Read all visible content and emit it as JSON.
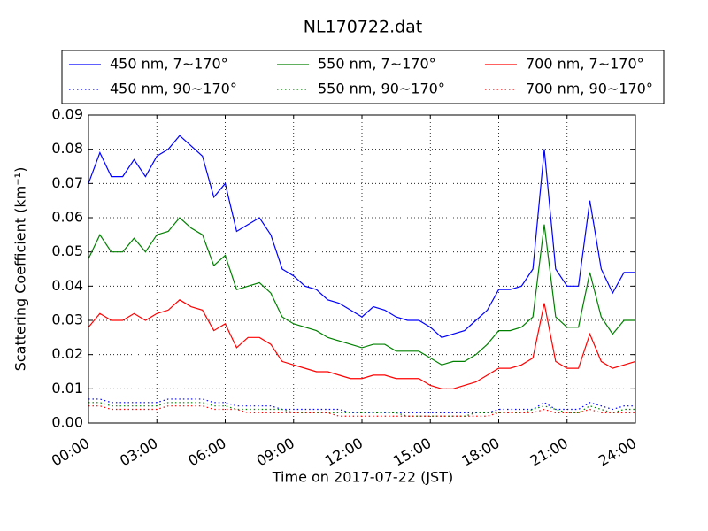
{
  "chart_data": {
    "type": "line",
    "title": "NL170722.dat",
    "xlabel": "Time on 2017-07-22 (JST)",
    "ylabel": "Scattering Coefficient (km⁻¹)",
    "x": [
      0,
      0.5,
      1,
      1.5,
      2,
      2.5,
      3,
      3.5,
      4,
      4.5,
      5,
      5.5,
      6,
      6.5,
      7,
      7.5,
      8,
      8.5,
      9,
      9.5,
      10,
      10.5,
      11,
      11.5,
      12,
      12.5,
      13,
      13.5,
      14,
      14.5,
      15,
      15.5,
      16,
      16.5,
      17,
      17.5,
      18,
      18.5,
      19,
      19.5,
      20,
      20.5,
      21,
      21.5,
      22,
      22.5,
      23,
      23.5,
      24
    ],
    "series": [
      {
        "name": "450 nm, 7∼170°",
        "color": "#0000ff",
        "dash": "solid",
        "values": [
          0.07,
          0.079,
          0.072,
          0.072,
          0.077,
          0.072,
          0.078,
          0.08,
          0.084,
          0.081,
          0.078,
          0.066,
          0.07,
          0.056,
          0.058,
          0.06,
          0.055,
          0.045,
          0.043,
          0.04,
          0.039,
          0.036,
          0.035,
          0.033,
          0.031,
          0.034,
          0.033,
          0.031,
          0.03,
          0.03,
          0.028,
          0.025,
          0.026,
          0.027,
          0.03,
          0.033,
          0.039,
          0.039,
          0.04,
          0.045,
          0.08,
          0.045,
          0.04,
          0.04,
          0.065,
          0.045,
          0.038,
          0.044,
          0.044
        ]
      },
      {
        "name": "450 nm, 90∼170°",
        "color": "#0000ff",
        "dash": "dotted",
        "values": [
          0.007,
          0.007,
          0.006,
          0.006,
          0.006,
          0.006,
          0.006,
          0.007,
          0.007,
          0.007,
          0.007,
          0.006,
          0.006,
          0.005,
          0.005,
          0.005,
          0.005,
          0.004,
          0.004,
          0.004,
          0.004,
          0.004,
          0.004,
          0.003,
          0.003,
          0.003,
          0.003,
          0.003,
          0.003,
          0.003,
          0.003,
          0.003,
          0.003,
          0.003,
          0.003,
          0.003,
          0.004,
          0.004,
          0.004,
          0.004,
          0.006,
          0.004,
          0.004,
          0.004,
          0.006,
          0.005,
          0.004,
          0.005,
          0.005
        ]
      },
      {
        "name": "550 nm, 7∼170°",
        "color": "#008000",
        "dash": "solid",
        "values": [
          0.048,
          0.055,
          0.05,
          0.05,
          0.054,
          0.05,
          0.055,
          0.056,
          0.06,
          0.057,
          0.055,
          0.046,
          0.049,
          0.039,
          0.04,
          0.041,
          0.038,
          0.031,
          0.029,
          0.028,
          0.027,
          0.025,
          0.024,
          0.023,
          0.022,
          0.023,
          0.023,
          0.021,
          0.021,
          0.021,
          0.019,
          0.017,
          0.018,
          0.018,
          0.02,
          0.023,
          0.027,
          0.027,
          0.028,
          0.031,
          0.058,
          0.031,
          0.028,
          0.028,
          0.044,
          0.031,
          0.026,
          0.03,
          0.03
        ]
      },
      {
        "name": "550 nm, 90∼170°",
        "color": "#008000",
        "dash": "dotted",
        "values": [
          0.006,
          0.006,
          0.005,
          0.005,
          0.005,
          0.005,
          0.005,
          0.006,
          0.006,
          0.006,
          0.006,
          0.005,
          0.005,
          0.004,
          0.004,
          0.004,
          0.004,
          0.004,
          0.003,
          0.003,
          0.003,
          0.003,
          0.003,
          0.003,
          0.003,
          0.003,
          0.003,
          0.003,
          0.002,
          0.002,
          0.002,
          0.002,
          0.002,
          0.002,
          0.003,
          0.003,
          0.003,
          0.003,
          0.003,
          0.004,
          0.005,
          0.004,
          0.003,
          0.003,
          0.005,
          0.004,
          0.003,
          0.004,
          0.004
        ]
      },
      {
        "name": "700 nm, 7∼170°",
        "color": "#ff0000",
        "dash": "solid",
        "values": [
          0.028,
          0.032,
          0.03,
          0.03,
          0.032,
          0.03,
          0.032,
          0.033,
          0.036,
          0.034,
          0.033,
          0.027,
          0.029,
          0.022,
          0.025,
          0.025,
          0.023,
          0.018,
          0.017,
          0.016,
          0.015,
          0.015,
          0.014,
          0.013,
          0.013,
          0.014,
          0.014,
          0.013,
          0.013,
          0.013,
          0.011,
          0.01,
          0.01,
          0.011,
          0.012,
          0.014,
          0.016,
          0.016,
          0.017,
          0.019,
          0.035,
          0.018,
          0.016,
          0.016,
          0.026,
          0.018,
          0.016,
          0.017,
          0.018
        ]
      },
      {
        "name": "700 nm, 90∼170°",
        "color": "#ff0000",
        "dash": "dotted",
        "values": [
          0.005,
          0.005,
          0.004,
          0.004,
          0.004,
          0.004,
          0.004,
          0.005,
          0.005,
          0.005,
          0.005,
          0.004,
          0.004,
          0.004,
          0.003,
          0.003,
          0.003,
          0.003,
          0.003,
          0.003,
          0.003,
          0.003,
          0.002,
          0.002,
          0.002,
          0.002,
          0.002,
          0.002,
          0.002,
          0.002,
          0.002,
          0.002,
          0.002,
          0.002,
          0.002,
          0.002,
          0.003,
          0.003,
          0.003,
          0.003,
          0.004,
          0.003,
          0.003,
          0.003,
          0.004,
          0.003,
          0.003,
          0.003,
          0.003
        ]
      }
    ],
    "xlim": [
      0,
      24
    ],
    "xticks": [
      {
        "value": 0,
        "label": "00:00"
      },
      {
        "value": 3,
        "label": "03:00"
      },
      {
        "value": 6,
        "label": "06:00"
      },
      {
        "value": 9,
        "label": "09:00"
      },
      {
        "value": 12,
        "label": "12:00"
      },
      {
        "value": 15,
        "label": "15:00"
      },
      {
        "value": 18,
        "label": "18:00"
      },
      {
        "value": 21,
        "label": "21:00"
      },
      {
        "value": 24,
        "label": "24:00"
      }
    ],
    "ylim": [
      0,
      0.09
    ],
    "yticks": [
      {
        "value": 0,
        "label": "0.00"
      },
      {
        "value": 0.01,
        "label": "0.01"
      },
      {
        "value": 0.02,
        "label": "0.02"
      },
      {
        "value": 0.03,
        "label": "0.03"
      },
      {
        "value": 0.04,
        "label": "0.04"
      },
      {
        "value": 0.05,
        "label": "0.05"
      },
      {
        "value": 0.06,
        "label": "0.06"
      },
      {
        "value": 0.07,
        "label": "0.07"
      },
      {
        "value": 0.08,
        "label": "0.08"
      },
      {
        "value": 0.09,
        "label": "0.09"
      }
    ],
    "grid": true,
    "legend": "top"
  }
}
